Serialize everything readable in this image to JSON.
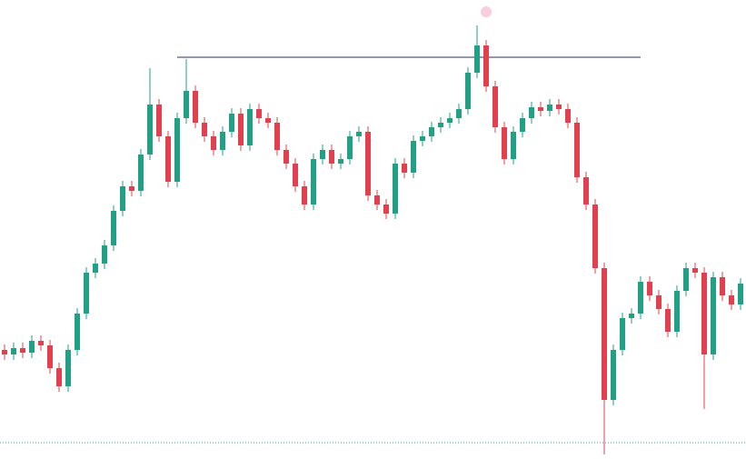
{
  "chart_data": {
    "type": "candlestick",
    "up_color": "#22a085",
    "down_color": "#e2404f",
    "ylim": [
      0,
      505
    ],
    "open": [
      120,
      115,
      122,
      117,
      130,
      125,
      100,
      80,
      120,
      160,
      205,
      215,
      235,
      273,
      300,
      295,
      335,
      390,
      355,
      305,
      375,
      405,
      370,
      355,
      340,
      360,
      380,
      345,
      385,
      375,
      370,
      340,
      325,
      300,
      280,
      330,
      340,
      325,
      330,
      355,
      360,
      290,
      280,
      270,
      325,
      315,
      350,
      355,
      365,
      370,
      375,
      385,
      425,
      455,
      410,
      365,
      330,
      360,
      375,
      387,
      383,
      390,
      385,
      370,
      310,
      280,
      210,
      65,
      120,
      155,
      160,
      195,
      180,
      165,
      140,
      185,
      210,
      205,
      115,
      200,
      180,
      170
    ],
    "high": [
      126,
      128,
      128,
      136,
      136,
      131,
      106,
      126,
      166,
      211,
      221,
      241,
      279,
      306,
      306,
      341,
      430,
      396,
      361,
      381,
      440,
      411,
      376,
      361,
      366,
      386,
      386,
      391,
      391,
      381,
      376,
      346,
      331,
      306,
      336,
      346,
      346,
      336,
      361,
      366,
      366,
      296,
      286,
      331,
      331,
      356,
      361,
      371,
      376,
      381,
      391,
      431,
      477,
      461,
      416,
      371,
      366,
      381,
      393,
      393,
      396,
      396,
      391,
      376,
      316,
      286,
      216,
      126,
      161,
      166,
      201,
      201,
      186,
      171,
      191,
      216,
      216,
      211,
      206,
      206,
      186,
      199
    ],
    "low": [
      109,
      109,
      111,
      111,
      119,
      94,
      74,
      74,
      114,
      154,
      199,
      209,
      229,
      267,
      289,
      289,
      329,
      349,
      299,
      299,
      369,
      364,
      349,
      334,
      334,
      354,
      339,
      339,
      369,
      364,
      334,
      319,
      294,
      274,
      274,
      324,
      319,
      319,
      324,
      349,
      284,
      274,
      264,
      264,
      309,
      309,
      344,
      349,
      359,
      364,
      369,
      379,
      419,
      404,
      359,
      324,
      324,
      354,
      369,
      377,
      377,
      379,
      364,
      304,
      274,
      204,
      5,
      59,
      114,
      149,
      154,
      174,
      159,
      134,
      134,
      179,
      199,
      55,
      109,
      174,
      164,
      164
    ],
    "close": [
      115,
      122,
      117,
      130,
      125,
      100,
      80,
      120,
      160,
      205,
      215,
      235,
      273,
      300,
      295,
      335,
      390,
      355,
      305,
      375,
      405,
      370,
      355,
      340,
      360,
      380,
      345,
      385,
      375,
      370,
      340,
      325,
      300,
      280,
      330,
      340,
      325,
      330,
      355,
      360,
      290,
      280,
      270,
      325,
      315,
      350,
      355,
      365,
      370,
      375,
      385,
      425,
      455,
      410,
      365,
      330,
      360,
      375,
      387,
      383,
      390,
      385,
      370,
      310,
      280,
      210,
      65,
      120,
      155,
      160,
      195,
      180,
      165,
      140,
      185,
      210,
      205,
      115,
      200,
      180,
      170,
      193
    ],
    "hlines": [
      {
        "value": 442,
        "color": "#9598a8",
        "from": 19,
        "to": 70
      },
      {
        "value": 18,
        "color": "#26a69a",
        "dotted": true
      }
    ],
    "markers": [
      {
        "index": 53,
        "value": 492,
        "color": "#f9cddb"
      }
    ]
  }
}
